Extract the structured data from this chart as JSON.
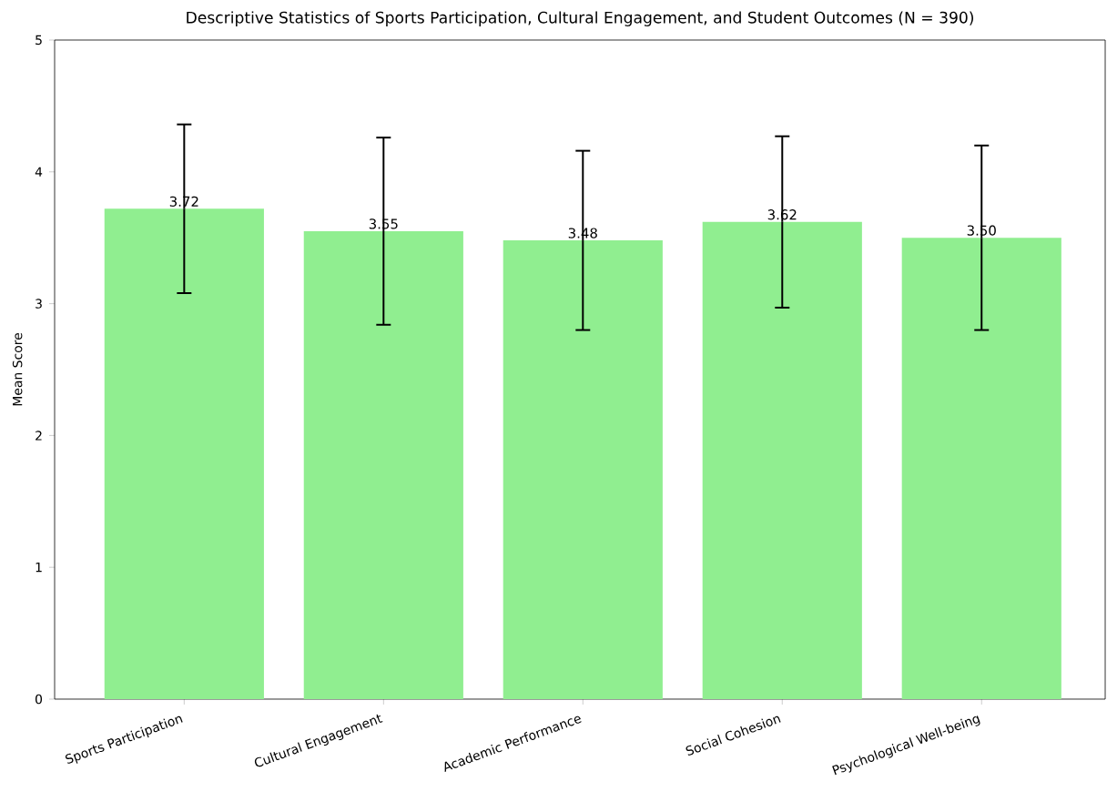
{
  "chart_data": {
    "type": "bar",
    "title": "Descriptive Statistics of Sports Participation, Cultural Engagement, and Student Outcomes (N = 390)",
    "ylabel": "Mean Score",
    "categories": [
      "Sports Participation",
      "Cultural Engagement",
      "Academic Performance",
      "Social Cohesion",
      "Psychological Well-being"
    ],
    "values": [
      3.72,
      3.55,
      3.48,
      3.62,
      3.5
    ],
    "errors": [
      0.64,
      0.71,
      0.68,
      0.65,
      0.7
    ],
    "value_labels": [
      "3.72",
      "3.55",
      "3.48",
      "3.62",
      "3.50"
    ],
    "color": "#90ee90",
    "ylim": [
      0,
      5
    ],
    "yticks": [
      0,
      1,
      2,
      3,
      4,
      5
    ]
  }
}
